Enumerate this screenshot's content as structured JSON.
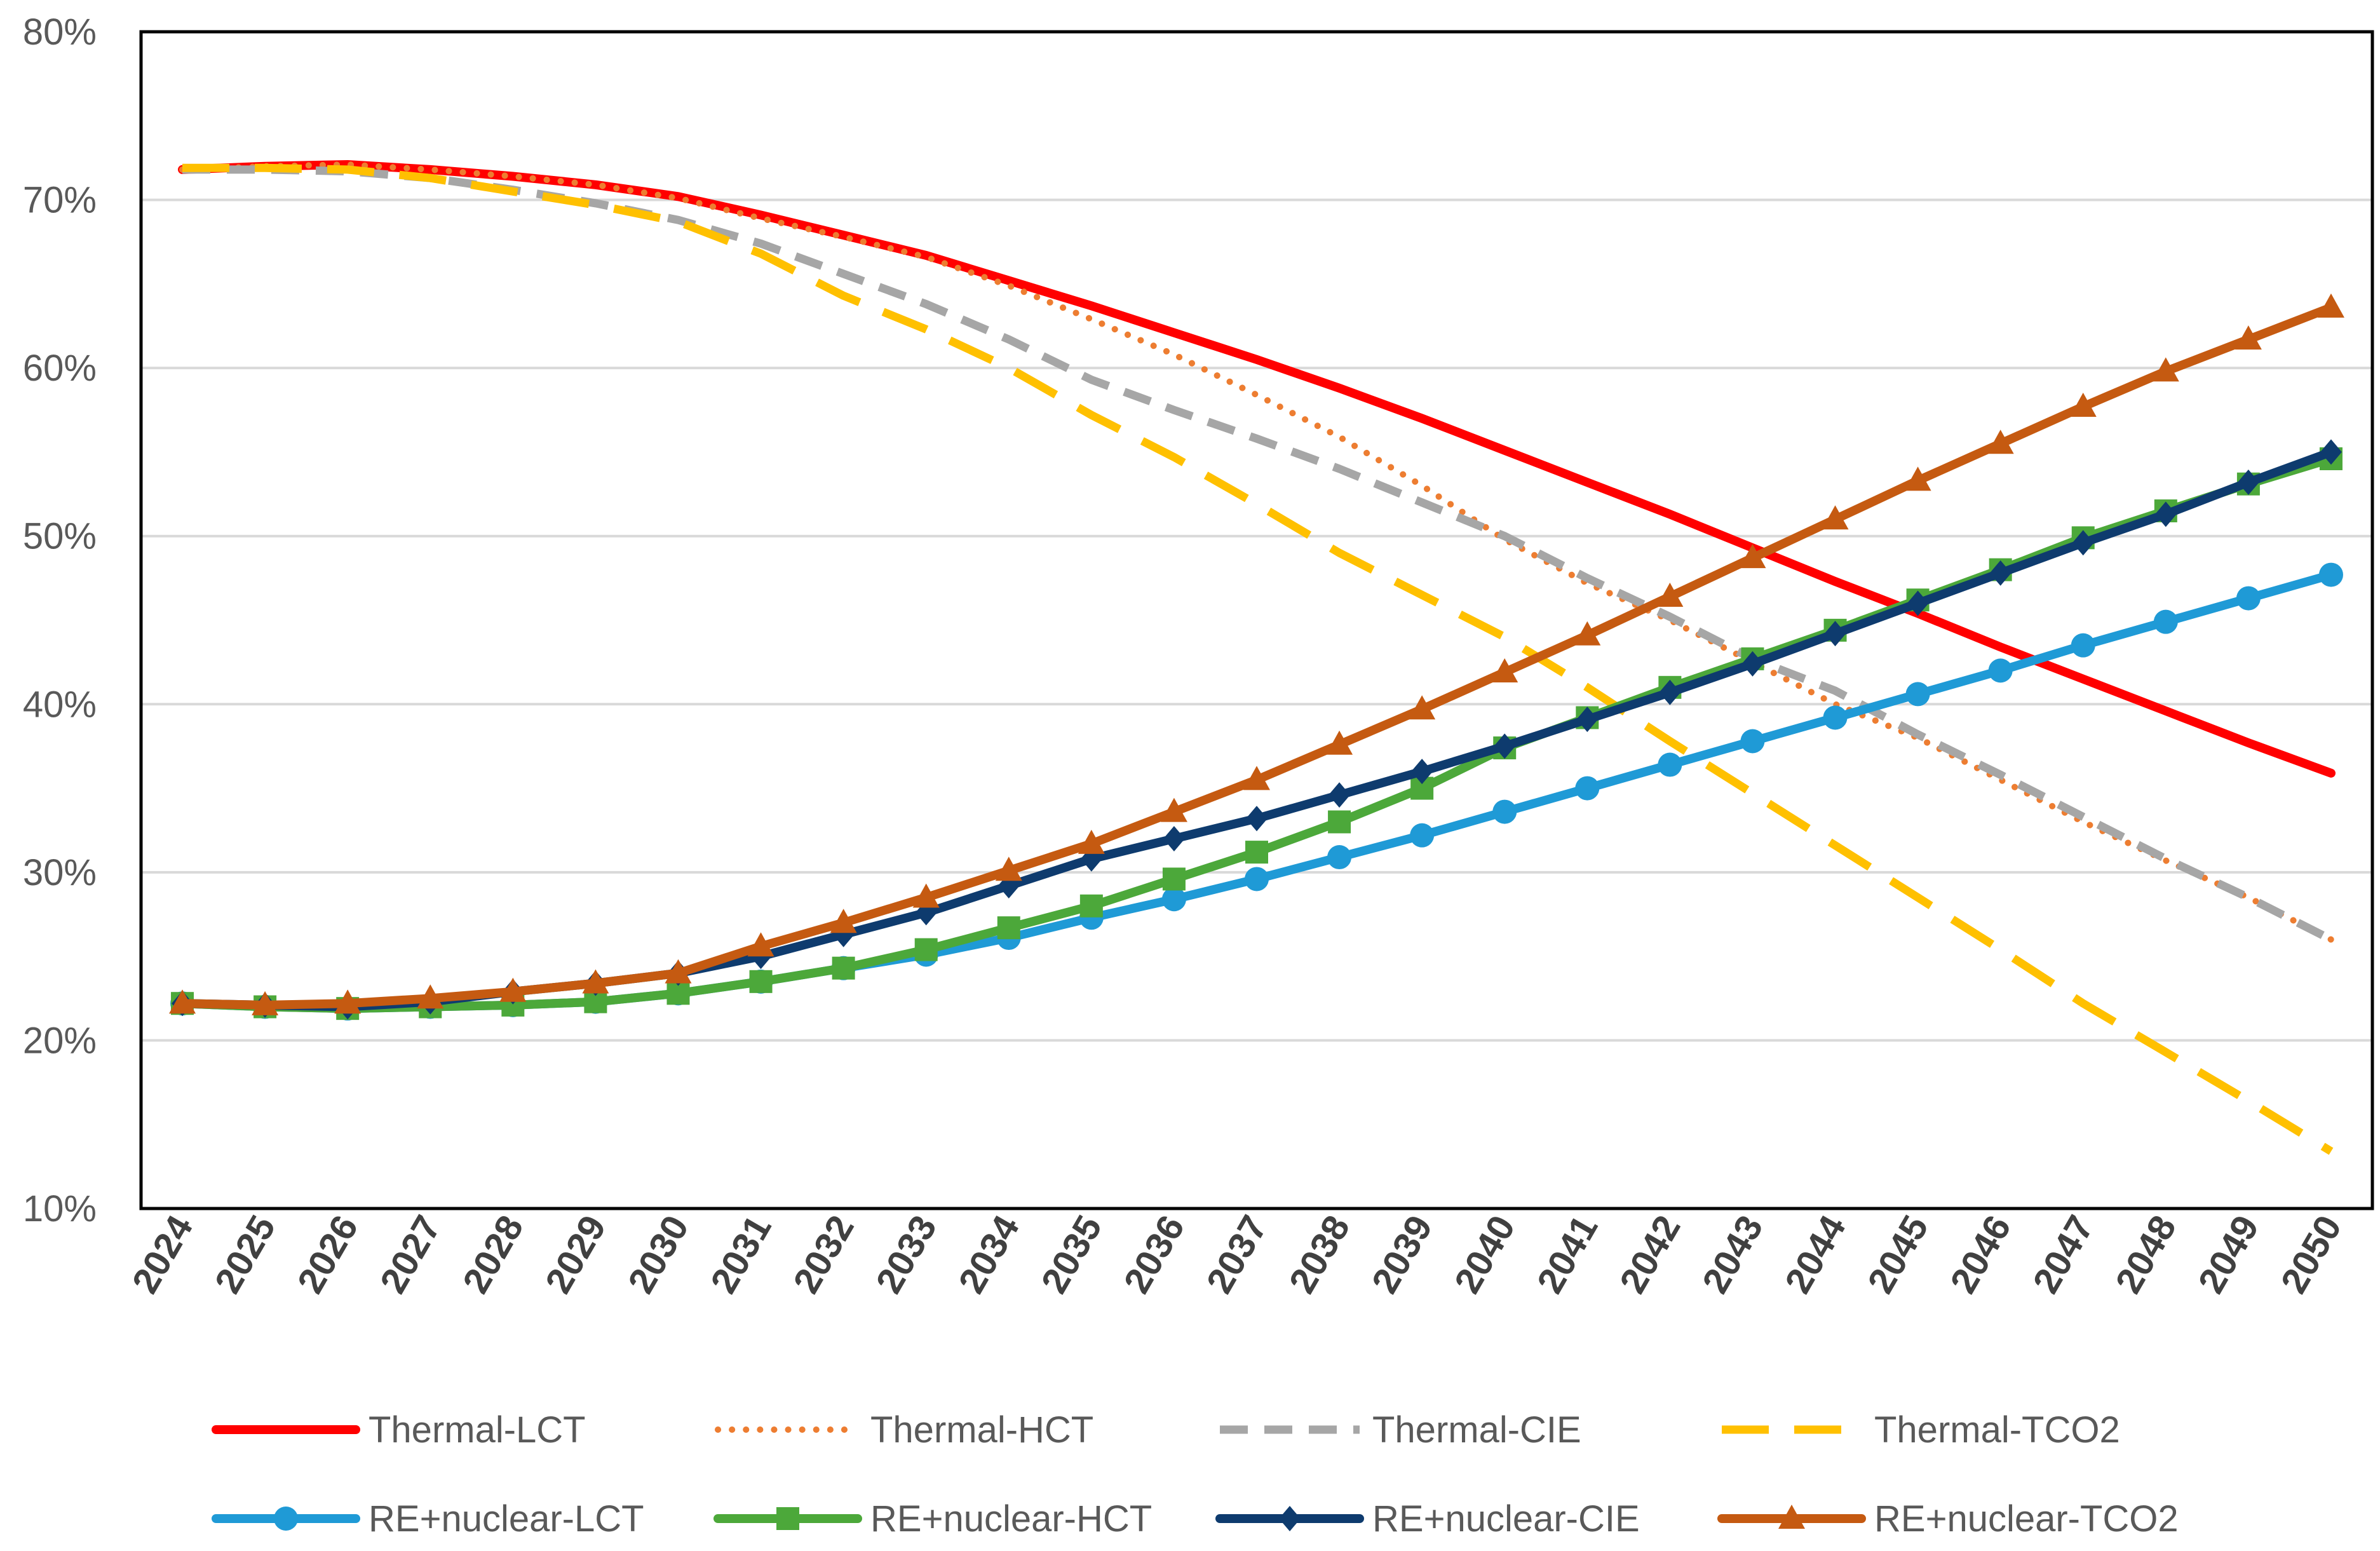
{
  "chart_data": {
    "type": "line",
    "title": "",
    "xlabel": "",
    "ylabel": "",
    "ylim": [
      10,
      80
    ],
    "ytick_step": 10,
    "grid": true,
    "legend_position": "bottom",
    "categories": [
      "2024",
      "2025",
      "2026",
      "2027",
      "2028",
      "2029",
      "2030",
      "2031",
      "2032",
      "2033",
      "2034",
      "2035",
      "2036",
      "2037",
      "2038",
      "2039",
      "2040",
      "2041",
      "2042",
      "2043",
      "2044",
      "2045",
      "2046",
      "2047",
      "2048",
      "2049",
      "2050"
    ],
    "y_tick_labels": [
      "10%",
      "20%",
      "30%",
      "40%",
      "50%",
      "60%",
      "70%",
      "80%"
    ],
    "series": [
      {
        "name": "Thermal-LCT",
        "color": "#ff0000",
        "style": "solid",
        "marker": "none",
        "values": [
          71.8,
          72.0,
          72.1,
          71.8,
          71.4,
          70.9,
          70.2,
          69.1,
          67.9,
          66.7,
          65.2,
          63.7,
          62.1,
          60.5,
          58.8,
          57.0,
          55.1,
          53.2,
          51.3,
          49.3,
          47.3,
          45.4,
          43.4,
          41.5,
          39.6,
          37.7,
          35.9
        ]
      },
      {
        "name": "Thermal-HCT",
        "color": "#ed7d31",
        "style": "dotted",
        "marker": "none",
        "values": [
          71.8,
          72.0,
          72.1,
          71.8,
          71.4,
          70.9,
          70.1,
          68.9,
          67.8,
          66.6,
          64.9,
          62.9,
          60.8,
          58.4,
          55.9,
          53.0,
          49.8,
          47.2,
          45.0,
          42.5,
          40.0,
          38.0,
          35.5,
          33.0,
          30.7,
          28.5,
          26.0
        ]
      },
      {
        "name": "Thermal-CIE",
        "color": "#a6a6a6",
        "style": "dashed",
        "marker": "none",
        "values": [
          71.8,
          71.8,
          71.7,
          71.3,
          70.6,
          69.8,
          68.8,
          67.4,
          65.6,
          63.8,
          61.7,
          59.3,
          57.5,
          55.8,
          54.0,
          52.0,
          50.0,
          47.5,
          45.2,
          42.7,
          40.8,
          38.2,
          35.8,
          33.3,
          30.8,
          28.5,
          26.0
        ]
      },
      {
        "name": "Thermal-TCO2",
        "color": "#ffc000",
        "style": "longdash",
        "marker": "none",
        "values": [
          71.9,
          71.9,
          71.8,
          71.3,
          70.5,
          69.7,
          68.7,
          66.8,
          64.3,
          62.3,
          60.0,
          57.2,
          54.7,
          51.9,
          49.0,
          46.5,
          44.0,
          41.0,
          37.8,
          34.7,
          31.6,
          28.5,
          25.4,
          22.2,
          19.3,
          16.4,
          13.4
        ]
      },
      {
        "name": "RE+nuclear-LCT",
        "color": "#1f9ad6",
        "style": "solid",
        "marker": "circle",
        "values": [
          22.2,
          22.0,
          21.9,
          22.0,
          22.1,
          22.3,
          22.8,
          23.5,
          24.3,
          25.1,
          26.1,
          27.3,
          28.4,
          29.6,
          30.9,
          32.2,
          33.6,
          35.0,
          36.4,
          37.8,
          39.2,
          40.6,
          42.0,
          43.5,
          44.9,
          46.3,
          47.7
        ]
      },
      {
        "name": "RE+nuclear-HCT",
        "color": "#4ca83a",
        "style": "solid",
        "marker": "square",
        "values": [
          22.2,
          22.0,
          21.9,
          22.0,
          22.1,
          22.3,
          22.8,
          23.5,
          24.3,
          25.4,
          26.7,
          28.0,
          29.6,
          31.2,
          33.0,
          35.0,
          37.4,
          39.2,
          41.0,
          42.7,
          44.4,
          46.2,
          48.0,
          49.9,
          51.5,
          53.1,
          54.6
        ]
      },
      {
        "name": "RE+nuclear-CIE",
        "color": "#0e3b6e",
        "style": "solid",
        "marker": "diamond",
        "values": [
          22.2,
          22.1,
          22.0,
          22.3,
          22.9,
          23.4,
          24.0,
          25.0,
          26.3,
          27.6,
          29.2,
          30.8,
          32.0,
          33.2,
          34.6,
          36.0,
          37.5,
          39.1,
          40.7,
          42.4,
          44.2,
          46.0,
          47.8,
          49.6,
          51.3,
          53.2,
          55.0
        ]
      },
      {
        "name": "RE+nuclear-TCO2",
        "color": "#c55a11",
        "style": "solid",
        "marker": "triangle",
        "values": [
          22.2,
          22.1,
          22.2,
          22.5,
          22.9,
          23.4,
          24.0,
          25.6,
          27.0,
          28.5,
          30.1,
          31.7,
          33.6,
          35.5,
          37.6,
          39.7,
          41.9,
          44.1,
          46.4,
          48.7,
          51.0,
          53.3,
          55.5,
          57.7,
          59.8,
          61.7,
          63.6
        ]
      }
    ]
  }
}
